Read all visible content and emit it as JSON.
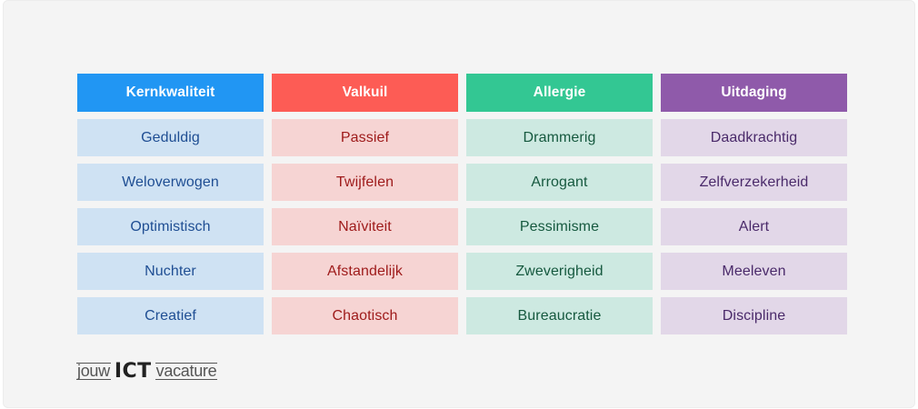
{
  "columns": [
    {
      "header": "Kernkwaliteit",
      "color": "#2196f3",
      "items": [
        "Geduldig",
        "Weloverwogen",
        "Optimistisch",
        "Nuchter",
        "Creatief"
      ]
    },
    {
      "header": "Valkuil",
      "color": "#fd5c55",
      "items": [
        "Passief",
        "Twijfelen",
        "Naïviteit",
        "Afstandelijk",
        "Chaotisch"
      ]
    },
    {
      "header": "Allergie",
      "color": "#33c793",
      "items": [
        "Drammerig",
        "Arrogant",
        "Pessimisme",
        "Zweverigheid",
        "Bureaucratie"
      ]
    },
    {
      "header": "Uitdaging",
      "color": "#8f5aaa",
      "items": [
        "Daadkrachtig",
        "Zelfverzekerheid",
        "Alert",
        "Meeleven",
        "Discipline"
      ]
    }
  ],
  "logo": {
    "left": "jouw",
    "center": "ICT",
    "right": "vacature"
  }
}
